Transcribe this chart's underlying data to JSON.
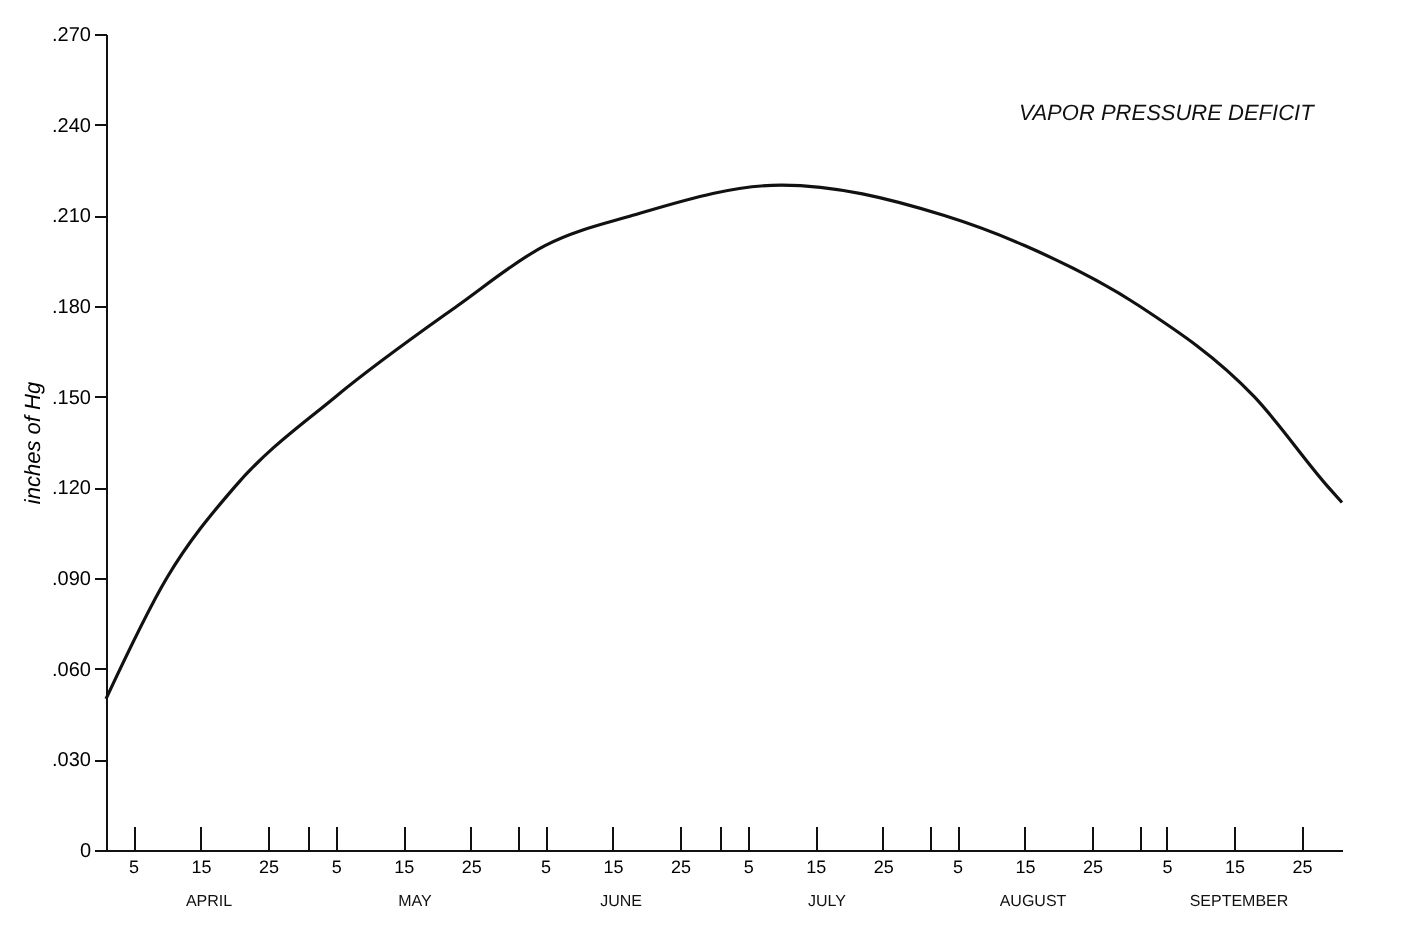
{
  "chart_data": {
    "type": "line",
    "title": "VAPOR PRESSURE DEFICIT",
    "ylabel": "inches of Hg",
    "x": [
      "--04-01",
      "--04-10",
      "--04-20",
      "--05-05",
      "--05-23",
      "--06-05",
      "--06-18",
      "--07-10",
      "--08-03",
      "--08-15",
      "--09-01",
      "--09-18",
      "--09-29",
      "--10-01"
    ],
    "series": [
      {
        "color": "#111111",
        "values": [
          0.05,
          0.09,
          0.12,
          0.15,
          0.18,
          0.2,
          0.21,
          0.22,
          0.21,
          0.2,
          0.18,
          0.15,
          0.12,
          0.115
        ]
      }
    ],
    "xlim": [
      "--04-01",
      "--10-01"
    ],
    "xticks": [
      {
        "value": "--04-05",
        "label": "5"
      },
      {
        "value": "--04-15",
        "label": "15"
      },
      {
        "value": "--04-25",
        "label": "25"
      },
      {
        "value": "--05-01",
        "label": null
      },
      {
        "value": "--05-05",
        "label": "5"
      },
      {
        "value": "--05-15",
        "label": "15"
      },
      {
        "value": "--05-25",
        "label": "25"
      },
      {
        "value": "--06-01",
        "label": null
      },
      {
        "value": "--06-05",
        "label": "5"
      },
      {
        "value": "--06-15",
        "label": "15"
      },
      {
        "value": "--06-25",
        "label": "25"
      },
      {
        "value": "--07-01",
        "label": null
      },
      {
        "value": "--07-05",
        "label": "5"
      },
      {
        "value": "--07-15",
        "label": "15"
      },
      {
        "value": "--07-25",
        "label": "25"
      },
      {
        "value": "--08-01",
        "label": null
      },
      {
        "value": "--08-05",
        "label": "5"
      },
      {
        "value": "--08-15",
        "label": "15"
      },
      {
        "value": "--08-25",
        "label": "25"
      },
      {
        "value": "--09-01",
        "label": null
      },
      {
        "value": "--09-05",
        "label": "5"
      },
      {
        "value": "--09-15",
        "label": "15"
      },
      {
        "value": "--09-25",
        "label": "25"
      }
    ],
    "ylim": [
      0,
      0.27
    ],
    "yticks": [
      {
        "value": 0,
        "label": "0"
      },
      {
        "value": 0.03,
        "label": ".030"
      },
      {
        "value": 0.06,
        "label": ".060"
      },
      {
        "value": 0.09,
        "label": ".090"
      },
      {
        "value": 0.12,
        "label": ".120"
      },
      {
        "value": 0.15,
        "label": ".150"
      },
      {
        "value": 0.18,
        "label": ".180"
      },
      {
        "value": 0.21,
        "label": ".210"
      },
      {
        "value": 0.24,
        "label": ".240"
      },
      {
        "value": 0.27,
        "label": ".270"
      }
    ],
    "annotations": [
      "APRIL",
      "MAY",
      "JUNE",
      "JULY",
      "AUGUST",
      "SEPTEMBER"
    ],
    "grid": false,
    "marker": "none",
    "line_style": "solid"
  }
}
